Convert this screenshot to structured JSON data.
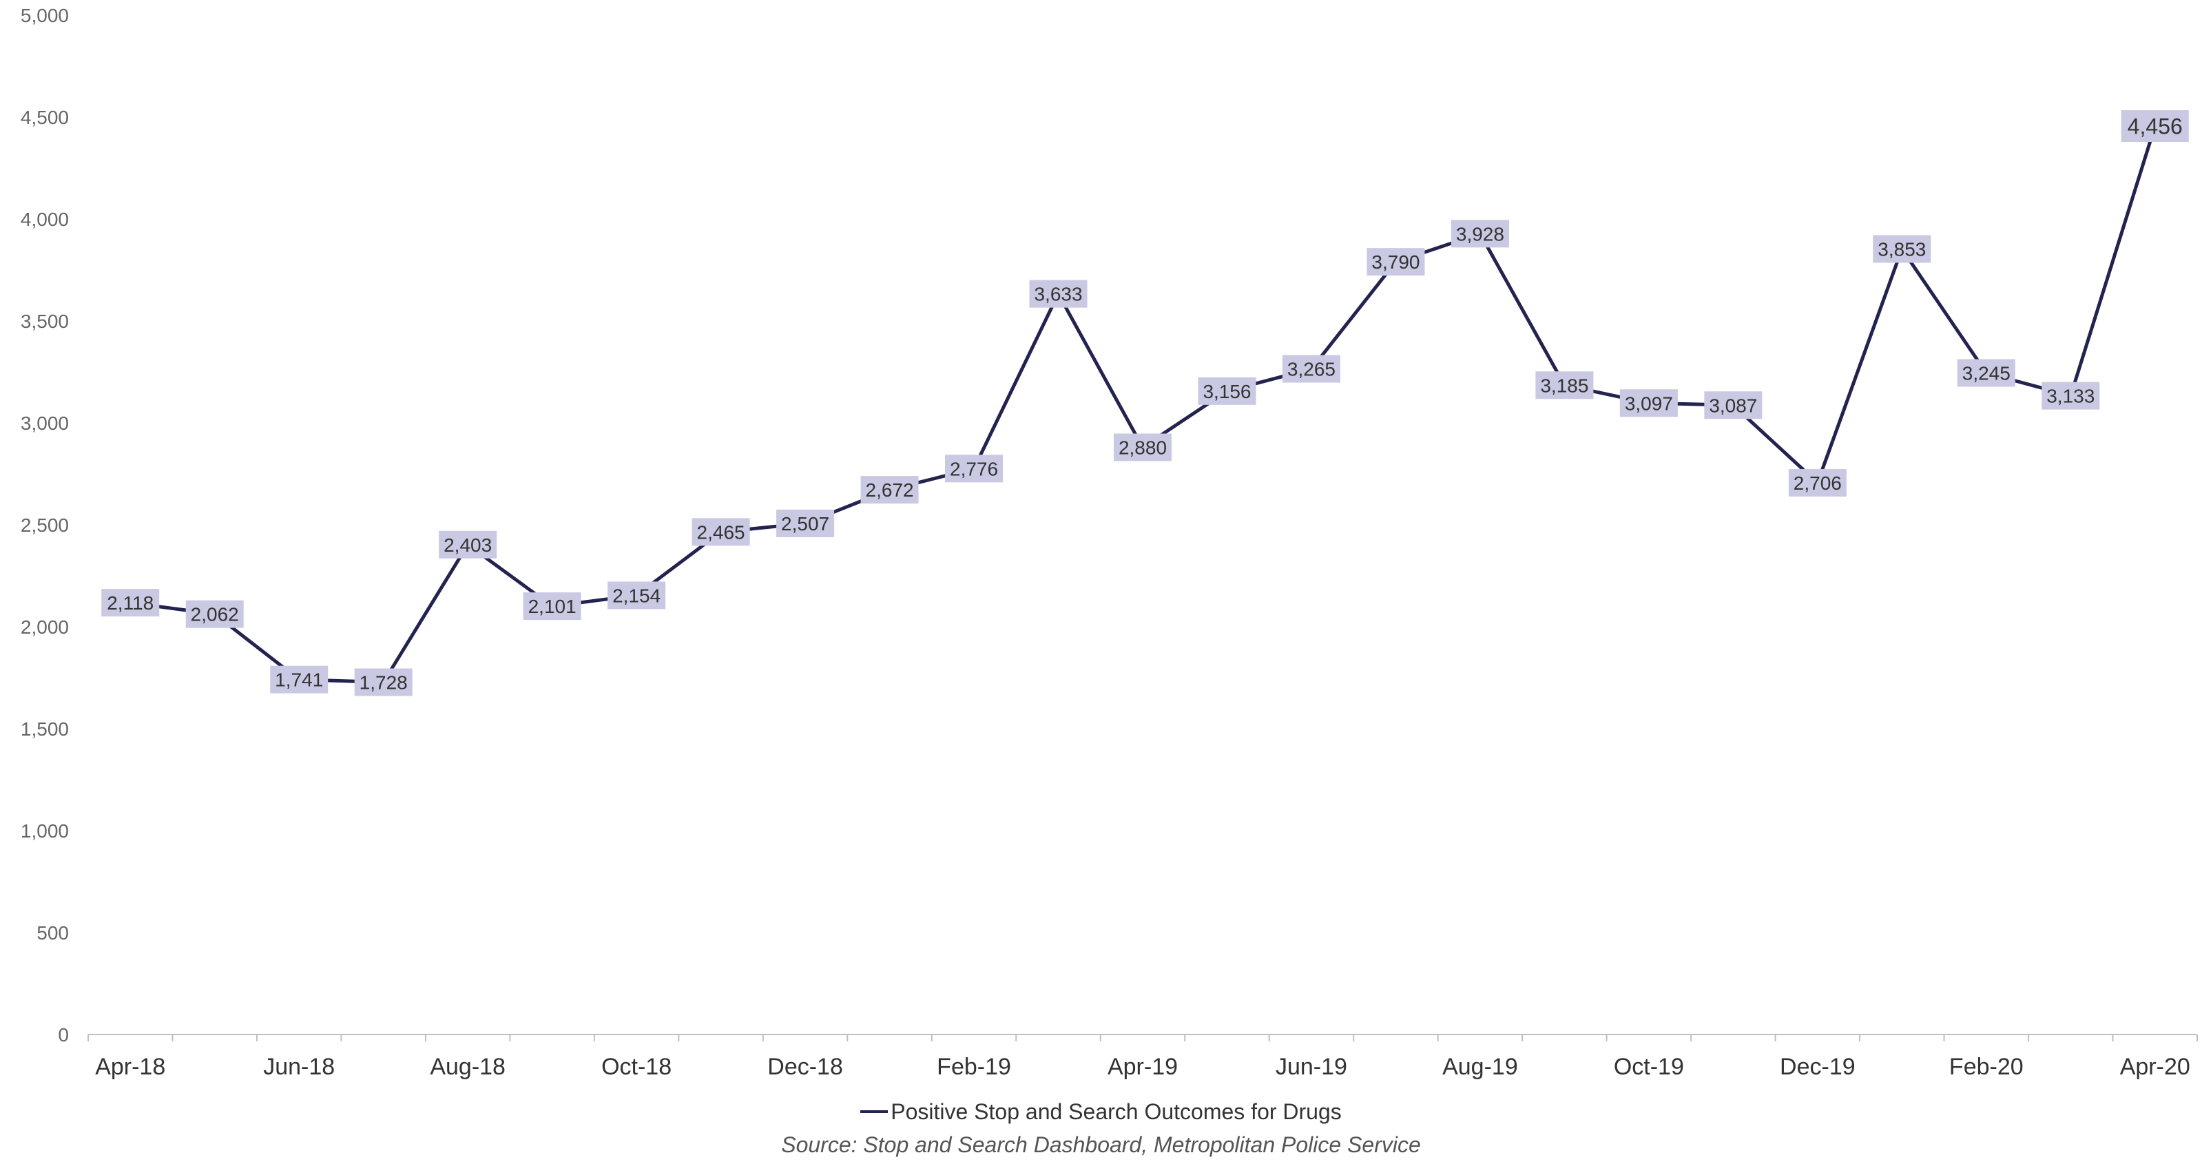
{
  "chart_data": {
    "type": "line",
    "categories": [
      "Apr-18",
      "May-18",
      "Jun-18",
      "Jul-18",
      "Aug-18",
      "Sep-18",
      "Oct-18",
      "Nov-18",
      "Dec-18",
      "Jan-19",
      "Feb-19",
      "Mar-19",
      "Apr-19",
      "May-19",
      "Jun-19",
      "Jul-19",
      "Aug-19",
      "Sep-19",
      "Oct-19",
      "Nov-19",
      "Dec-19",
      "Jan-20",
      "Feb-20",
      "Mar-20",
      "Apr-20"
    ],
    "x_tick_labels": [
      "Apr-18",
      "Jun-18",
      "Aug-18",
      "Oct-18",
      "Dec-18",
      "Feb-19",
      "Apr-19",
      "Jun-19",
      "Aug-19",
      "Oct-19",
      "Dec-19",
      "Feb-20",
      "Apr-20"
    ],
    "series": [
      {
        "name": "Positive Stop and Search Outcomes for Drugs",
        "values": [
          2118,
          2062,
          1741,
          1728,
          2403,
          2101,
          2154,
          2465,
          2507,
          2672,
          2776,
          3633,
          2880,
          3156,
          3265,
          3790,
          3928,
          3185,
          3097,
          3087,
          2706,
          3853,
          3245,
          3133,
          4456
        ],
        "data_labels": [
          "2,118",
          "2,062",
          "1,741",
          "1,728",
          "2,403",
          "2,101",
          "2,154",
          "2,465",
          "2,507",
          "2,672",
          "2,776",
          "3,633",
          "2,880",
          "3,156",
          "3,265",
          "3,790",
          "3,928",
          "3,185",
          "3,097",
          "3,087",
          "2,706",
          "3,853",
          "3,245",
          "3,133",
          "4,456"
        ],
        "color": "#23234f"
      }
    ],
    "y_ticks": [
      0,
      500,
      1000,
      1500,
      2000,
      2500,
      3000,
      3500,
      4000,
      4500,
      5000
    ],
    "y_tick_labels": [
      "0",
      "500",
      "1,000",
      "1,500",
      "2,000",
      "2,500",
      "3,000",
      "3,500",
      "4,000",
      "4,500",
      "5,000"
    ],
    "ylim": [
      0,
      5000
    ],
    "grid": false,
    "legend_position": "bottom",
    "label_background": "#c9c9e3",
    "source": "Source: Stop and Search Dashboard, Metropolitan Police Service"
  }
}
